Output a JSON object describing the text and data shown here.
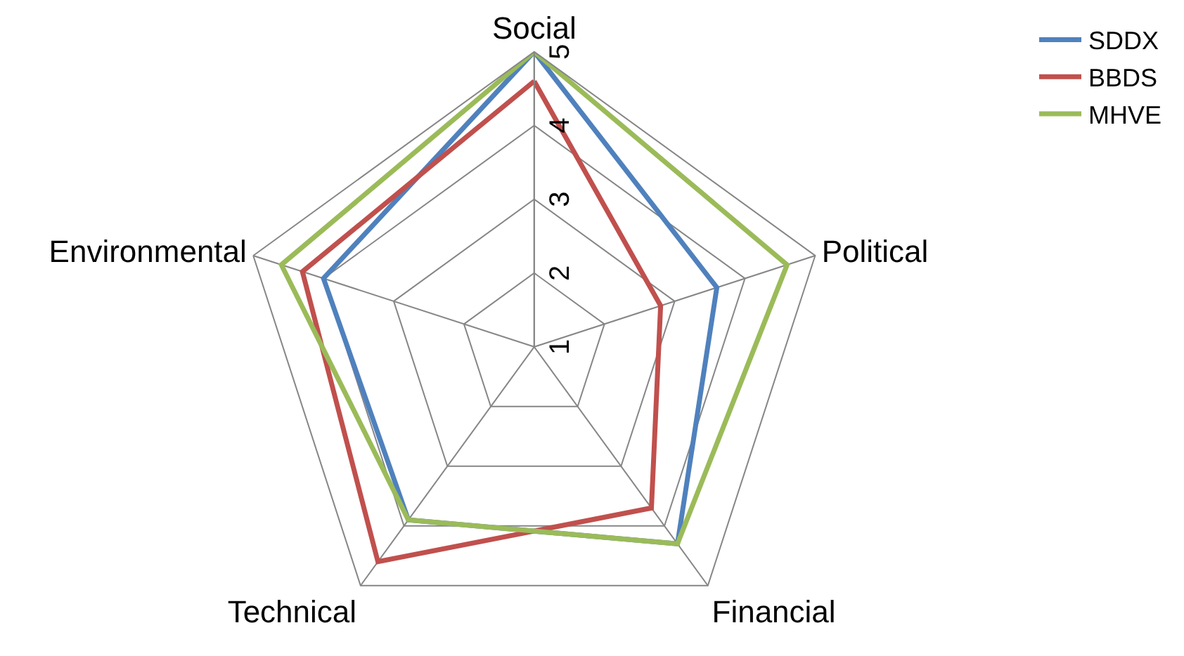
{
  "chart_data": {
    "type": "radar",
    "categories": [
      "Social",
      "Political",
      "Financial",
      "Technical",
      "Environmental"
    ],
    "series": [
      {
        "name": "SDDX",
        "color": "#4f81bd",
        "values": [
          5,
          3.6,
          4.3,
          3.9,
          4.0
        ]
      },
      {
        "name": "BBDS",
        "color": "#c0504d",
        "values": [
          4.6,
          2.8,
          3.7,
          4.6,
          4.3
        ]
      },
      {
        "name": "MHVE",
        "color": "#9bbb59",
        "values": [
          5,
          4.6,
          4.3,
          3.9,
          4.6
        ]
      }
    ],
    "ylim": [
      1,
      5
    ],
    "yticks": [
      1,
      2,
      3,
      4,
      5
    ],
    "grid": true,
    "legend": "top right",
    "marker": "none",
    "line_style": "solid"
  }
}
